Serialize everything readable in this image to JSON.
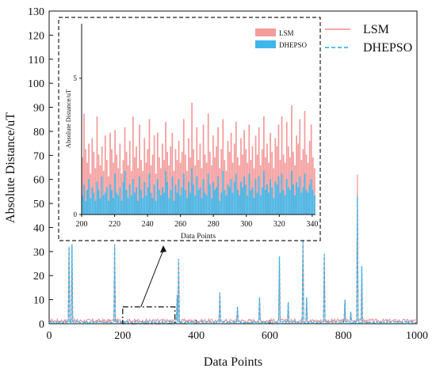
{
  "chart_data": [
    {
      "type": "line",
      "xlabel": "Data Points",
      "ylabel": "Absolute Distance/uT",
      "xlim": [
        0,
        1000
      ],
      "ylim": [
        0,
        130
      ],
      "xticks": [
        0,
        200,
        400,
        600,
        800,
        1000
      ],
      "yticks": [
        0,
        10,
        20,
        30,
        40,
        50,
        60,
        70,
        80,
        90,
        100,
        110,
        120,
        130
      ],
      "legend_position": "right-outside-top",
      "series": [
        {
          "name": "LSM",
          "color": "#f08c8c",
          "style": "solid",
          "baseline": 1.2,
          "spikes": [
            [
              55,
              32
            ],
            [
              62,
              33
            ],
            [
              178,
              33
            ],
            [
              348,
              12
            ],
            [
              353,
              27
            ],
            [
              465,
              13
            ],
            [
              512,
              7
            ],
            [
              572,
              11
            ],
            [
              627,
              28
            ],
            [
              650,
              9
            ],
            [
              690,
              35
            ],
            [
              700,
              11
            ],
            [
              748,
              29
            ],
            [
              805,
              10
            ],
            [
              820,
              5
            ],
            [
              838,
              62
            ],
            [
              850,
              24
            ]
          ]
        },
        {
          "name": "DHEPSO",
          "color": "#3fb6e8",
          "style": "dashed",
          "baseline": 0.6,
          "spikes": [
            [
              55,
              32
            ],
            [
              62,
              33
            ],
            [
              178,
              33
            ],
            [
              348,
              12
            ],
            [
              353,
              27
            ],
            [
              465,
              13
            ],
            [
              512,
              7
            ],
            [
              572,
              11
            ],
            [
              627,
              28
            ],
            [
              650,
              9
            ],
            [
              690,
              35
            ],
            [
              700,
              11
            ],
            [
              748,
              29
            ],
            [
              805,
              10
            ],
            [
              820,
              5
            ],
            [
              838,
              53
            ],
            [
              850,
              24
            ]
          ]
        }
      ],
      "zoom_region": {
        "x": [
          200,
          342
        ],
        "y": [
          0,
          7
        ]
      }
    },
    {
      "type": "bar",
      "xlabel": "Data Points",
      "ylabel": "Absolute Distance/uT",
      "xlim": [
        200,
        342
      ],
      "ylim": [
        0,
        7
      ],
      "xticks": [
        200,
        220,
        240,
        260,
        280,
        300,
        320,
        340
      ],
      "yticks": [
        0,
        5
      ],
      "legend_position": "top-right",
      "series": [
        {
          "name": "LSM",
          "color": "#f49c9c",
          "values": [
            2.1,
            3.7,
            2.4,
            1.9,
            2.6,
            1.5,
            2.8,
            2.3,
            1.7,
            3.6,
            2.2,
            1.8,
            2.5,
            1.6,
            2.9,
            2.0,
            1.4,
            3.0,
            2.4,
            1.9,
            3.1,
            2.2,
            1.7,
            2.6,
            1.5,
            2.0,
            3.2,
            2.3,
            1.8,
            2.7,
            1.6,
            3.6,
            2.1,
            2.5,
            1.7,
            3.3,
            2.0,
            1.6,
            2.8,
            1.9,
            2.4,
            3.5,
            1.8,
            2.2,
            2.9,
            1.5,
            3.0,
            2.1,
            1.7,
            2.6,
            2.0,
            3.4,
            2.3,
            1.8,
            2.5,
            3.0,
            1.6,
            2.4,
            2.0,
            2.7,
            1.9,
            2.3,
            3.5,
            2.2,
            1.6,
            2.8,
            2.1,
            4.1,
            2.4,
            1.8,
            3.2,
            2.0,
            2.6,
            1.7,
            3.3,
            2.2,
            1.9,
            3.7,
            2.3,
            1.8,
            2.9,
            2.1,
            2.5,
            3.2,
            1.7,
            2.4,
            3.5,
            2.0,
            1.6,
            2.7,
            2.3,
            3.0,
            1.9,
            2.6,
            3.4,
            2.1,
            1.8,
            2.8,
            2.2,
            3.1,
            2.4,
            1.9,
            3.3,
            2.0,
            2.5,
            1.7,
            2.9,
            2.2,
            3.2,
            1.8,
            2.4,
            3.6,
            2.1,
            2.6,
            1.9,
            3.0,
            2.3,
            1.7,
            2.8,
            2.5,
            3.3,
            2.0,
            3.6,
            2.2,
            1.9,
            3.4,
            2.5,
            2.1,
            4.0,
            2.3,
            1.8,
            2.9,
            2.6,
            3.5,
            2.0,
            2.4,
            3.8,
            2.2,
            1.9,
            2.7,
            3.3,
            2.1,
            1.7
          ]
        },
        {
          "name": "DHEPSO",
          "color": "#3fb6e8",
          "values": [
            0.7,
            1.1,
            0.5,
            0.9,
            1.3,
            0.6,
            1.0,
            0.8,
            0.5,
            1.2,
            0.9,
            0.6,
            1.4,
            0.7,
            0.8,
            1.0,
            0.5,
            1.1,
            0.9,
            0.6,
            1.5,
            0.8,
            0.7,
            1.0,
            0.5,
            1.2,
            1.6,
            0.9,
            0.6,
            1.1,
            0.7,
            1.3,
            0.8,
            1.0,
            0.5,
            1.4,
            0.9,
            0.6,
            1.2,
            0.7,
            1.0,
            1.5,
            0.8,
            0.6,
            1.1,
            0.5,
            1.3,
            0.9,
            0.7,
            1.0,
            0.8,
            1.6,
            1.2,
            0.6,
            0.9,
            1.4,
            0.5,
            1.1,
            0.8,
            1.3,
            0.7,
            1.0,
            1.5,
            0.9,
            0.6,
            1.2,
            0.8,
            1.7,
            1.1,
            0.7,
            1.4,
            0.9,
            1.0,
            0.6,
            1.3,
            0.8,
            0.7,
            1.5,
            1.1,
            0.6,
            1.2,
            0.9,
            1.0,
            1.4,
            0.5,
            0.8,
            1.6,
            0.9,
            0.7,
            1.1,
            1.0,
            1.3,
            0.8,
            1.2,
            1.5,
            0.9,
            0.7,
            1.2,
            1.0,
            1.4,
            1.1,
            0.7,
            1.5,
            0.9,
            1.0,
            0.6,
            1.3,
            0.8,
            1.4,
            0.7,
            1.0,
            1.6,
            0.9,
            1.1,
            0.8,
            1.3,
            1.0,
            0.6,
            1.2,
            1.1,
            1.4,
            0.8,
            1.5,
            0.9,
            0.7,
            1.3,
            1.0,
            0.9,
            1.6,
            1.1,
            0.7,
            1.2,
            1.0,
            1.4,
            0.8,
            1.0,
            1.5,
            0.9,
            0.8,
            1.1,
            1.3,
            0.9,
            0.7
          ]
        }
      ]
    }
  ]
}
